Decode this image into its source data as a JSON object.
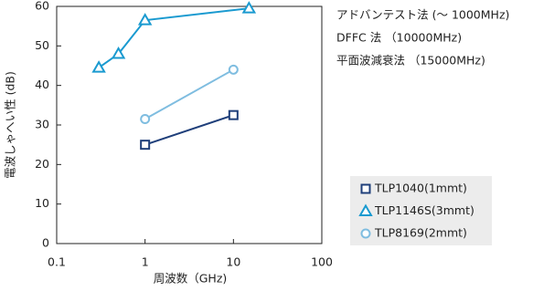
{
  "chart_data": {
    "type": "line",
    "y_label": "電波しゃへい性 (dB)",
    "x_label": "周波数（GHz)",
    "annotations": [
      "アドバンテスト法 (～ 1000MHz)",
      "DFFC 法 （10000MHz)",
      "平面波減衰法 （15000MHz)"
    ],
    "xscale": "log",
    "xlim": [
      0.1,
      100
    ],
    "xticks": [
      0.1,
      1,
      10,
      100
    ],
    "ylim": [
      0,
      60
    ],
    "yticks": [
      0,
      10,
      20,
      30,
      40,
      50,
      60
    ],
    "series": [
      {
        "name": "TLP1040(1mmt)",
        "color": "#1f3f7a",
        "marker": "square",
        "x": [
          1,
          10
        ],
        "values": [
          25,
          32.5
        ]
      },
      {
        "name": "TLP1146S(3mmt)",
        "color": "#1a9ad0",
        "marker": "triangle",
        "x": [
          0.3,
          0.5,
          1,
          15
        ],
        "values": [
          44.5,
          48,
          56.5,
          59.5
        ]
      },
      {
        "name": "TLP8169(2mmt)",
        "color": "#7fbde0",
        "marker": "circle",
        "x": [
          1,
          10
        ],
        "values": [
          31.5,
          44
        ]
      }
    ]
  }
}
